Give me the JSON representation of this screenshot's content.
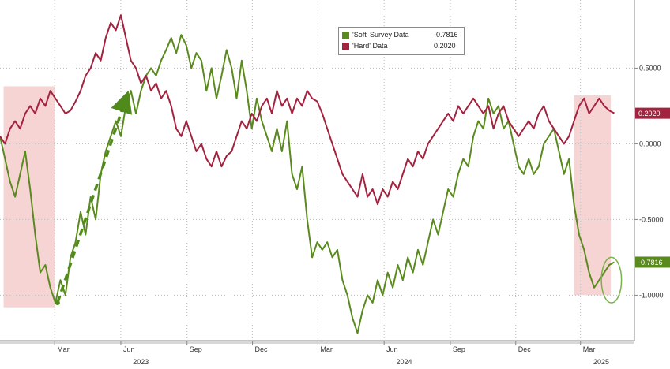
{
  "chart_data": {
    "type": "line",
    "title": "",
    "xlabel": "",
    "ylabel": "",
    "ylim": [
      -1.3,
      0.95
    ],
    "x_range": [
      "2022-12-15",
      "2025-05-15"
    ],
    "yticks": [
      {
        "value": 0.5,
        "label": "0.5000"
      },
      {
        "value": 0.0,
        "label": "0.0000"
      },
      {
        "value": -0.5,
        "label": "-0.5000"
      },
      {
        "value": -1.0,
        "label": "-1.0000"
      }
    ],
    "month_ticks": [
      {
        "date": "2023-03-01",
        "label": "Mar"
      },
      {
        "date": "2023-06-01",
        "label": "Jun"
      },
      {
        "date": "2023-09-01",
        "label": "Sep"
      },
      {
        "date": "2023-12-01",
        "label": "Dec"
      },
      {
        "date": "2024-03-01",
        "label": "Mar"
      },
      {
        "date": "2024-06-01",
        "label": "Jun"
      },
      {
        "date": "2024-09-01",
        "label": "Sep"
      },
      {
        "date": "2024-12-01",
        "label": "Dec"
      },
      {
        "date": "2025-03-01",
        "label": "Mar"
      }
    ],
    "year_labels": [
      {
        "date": "2023-07-01",
        "label": "2023"
      },
      {
        "date": "2024-07-01",
        "label": "2024"
      },
      {
        "date": "2025-04-01",
        "label": "2025"
      }
    ],
    "legend_position": "top-center",
    "grid": true,
    "series": [
      {
        "name": "'Soft' Survey Data",
        "last_value": "-0.7816",
        "color": "#5a8a1e",
        "points": [
          [
            "2022-12-15",
            0.05
          ],
          [
            "2022-12-22",
            -0.1
          ],
          [
            "2022-12-29",
            -0.25
          ],
          [
            "2023-01-05",
            -0.35
          ],
          [
            "2023-01-12",
            -0.2
          ],
          [
            "2023-01-19",
            -0.05
          ],
          [
            "2023-01-26",
            -0.3
          ],
          [
            "2023-02-02",
            -0.6
          ],
          [
            "2023-02-09",
            -0.85
          ],
          [
            "2023-02-16",
            -0.8
          ],
          [
            "2023-02-23",
            -0.95
          ],
          [
            "2023-03-02",
            -1.05
          ],
          [
            "2023-03-09",
            -0.9
          ],
          [
            "2023-03-16",
            -1.0
          ],
          [
            "2023-03-23",
            -0.75
          ],
          [
            "2023-03-30",
            -0.65
          ],
          [
            "2023-04-06",
            -0.45
          ],
          [
            "2023-04-13",
            -0.6
          ],
          [
            "2023-04-20",
            -0.35
          ],
          [
            "2023-04-27",
            -0.5
          ],
          [
            "2023-05-04",
            -0.2
          ],
          [
            "2023-05-11",
            -0.05
          ],
          [
            "2023-05-18",
            0.05
          ],
          [
            "2023-05-25",
            0.15
          ],
          [
            "2023-06-01",
            0.05
          ],
          [
            "2023-06-08",
            0.25
          ],
          [
            "2023-06-15",
            0.35
          ],
          [
            "2023-06-22",
            0.2
          ],
          [
            "2023-06-29",
            0.35
          ],
          [
            "2023-07-06",
            0.45
          ],
          [
            "2023-07-13",
            0.5
          ],
          [
            "2023-07-20",
            0.45
          ],
          [
            "2023-07-27",
            0.55
          ],
          [
            "2023-08-03",
            0.62
          ],
          [
            "2023-08-10",
            0.7
          ],
          [
            "2023-08-17",
            0.6
          ],
          [
            "2023-08-24",
            0.72
          ],
          [
            "2023-08-31",
            0.65
          ],
          [
            "2023-09-07",
            0.5
          ],
          [
            "2023-09-14",
            0.6
          ],
          [
            "2023-09-21",
            0.55
          ],
          [
            "2023-09-28",
            0.35
          ],
          [
            "2023-10-05",
            0.5
          ],
          [
            "2023-10-12",
            0.3
          ],
          [
            "2023-10-19",
            0.45
          ],
          [
            "2023-10-26",
            0.62
          ],
          [
            "2023-11-02",
            0.5
          ],
          [
            "2023-11-09",
            0.3
          ],
          [
            "2023-11-16",
            0.55
          ],
          [
            "2023-11-23",
            0.35
          ],
          [
            "2023-11-30",
            0.1
          ],
          [
            "2023-12-07",
            0.3
          ],
          [
            "2023-12-14",
            0.15
          ],
          [
            "2023-12-21",
            0.05
          ],
          [
            "2023-12-28",
            -0.05
          ],
          [
            "2024-01-04",
            0.1
          ],
          [
            "2024-01-11",
            -0.05
          ],
          [
            "2024-01-18",
            0.15
          ],
          [
            "2024-01-25",
            -0.2
          ],
          [
            "2024-02-01",
            -0.3
          ],
          [
            "2024-02-08",
            -0.15
          ],
          [
            "2024-02-15",
            -0.5
          ],
          [
            "2024-02-22",
            -0.75
          ],
          [
            "2024-02-29",
            -0.65
          ],
          [
            "2024-03-07",
            -0.7
          ],
          [
            "2024-03-14",
            -0.65
          ],
          [
            "2024-03-21",
            -0.75
          ],
          [
            "2024-03-28",
            -0.7
          ],
          [
            "2024-04-04",
            -0.9
          ],
          [
            "2024-04-11",
            -1.0
          ],
          [
            "2024-04-18",
            -1.15
          ],
          [
            "2024-04-25",
            -1.25
          ],
          [
            "2024-05-02",
            -1.1
          ],
          [
            "2024-05-09",
            -1.0
          ],
          [
            "2024-05-16",
            -1.05
          ],
          [
            "2024-05-23",
            -0.9
          ],
          [
            "2024-05-30",
            -1.0
          ],
          [
            "2024-06-06",
            -0.85
          ],
          [
            "2024-06-13",
            -0.95
          ],
          [
            "2024-06-20",
            -0.8
          ],
          [
            "2024-06-27",
            -0.9
          ],
          [
            "2024-07-04",
            -0.75
          ],
          [
            "2024-07-11",
            -0.85
          ],
          [
            "2024-07-18",
            -0.7
          ],
          [
            "2024-07-25",
            -0.8
          ],
          [
            "2024-08-01",
            -0.65
          ],
          [
            "2024-08-08",
            -0.5
          ],
          [
            "2024-08-15",
            -0.6
          ],
          [
            "2024-08-22",
            -0.45
          ],
          [
            "2024-08-29",
            -0.3
          ],
          [
            "2024-09-05",
            -0.35
          ],
          [
            "2024-09-12",
            -0.2
          ],
          [
            "2024-09-19",
            -0.1
          ],
          [
            "2024-09-26",
            -0.15
          ],
          [
            "2024-10-03",
            0.05
          ],
          [
            "2024-10-10",
            0.15
          ],
          [
            "2024-10-17",
            0.1
          ],
          [
            "2024-10-24",
            0.3
          ],
          [
            "2024-10-31",
            0.2
          ],
          [
            "2024-11-07",
            0.25
          ],
          [
            "2024-11-14",
            0.1
          ],
          [
            "2024-11-21",
            0.15
          ],
          [
            "2024-11-28",
            0.0
          ],
          [
            "2024-12-05",
            -0.15
          ],
          [
            "2024-12-12",
            -0.2
          ],
          [
            "2024-12-19",
            -0.1
          ],
          [
            "2024-12-26",
            -0.2
          ],
          [
            "2025-01-02",
            -0.15
          ],
          [
            "2025-01-09",
            0.0
          ],
          [
            "2025-01-16",
            0.05
          ],
          [
            "2025-01-23",
            0.1
          ],
          [
            "2025-01-30",
            -0.05
          ],
          [
            "2025-02-06",
            -0.2
          ],
          [
            "2025-02-13",
            -0.1
          ],
          [
            "2025-02-20",
            -0.4
          ],
          [
            "2025-02-27",
            -0.6
          ],
          [
            "2025-03-06",
            -0.7
          ],
          [
            "2025-03-13",
            -0.85
          ],
          [
            "2025-03-20",
            -0.95
          ],
          [
            "2025-03-27",
            -0.9
          ],
          [
            "2025-04-03",
            -0.85
          ],
          [
            "2025-04-10",
            -0.8
          ],
          [
            "2025-04-17",
            -0.7816
          ]
        ]
      },
      {
        "name": "'Hard' Data",
        "last_value": "0.2020",
        "color": "#a3223f",
        "points": [
          [
            "2022-12-15",
            0.05
          ],
          [
            "2022-12-22",
            0.0
          ],
          [
            "2022-12-29",
            0.1
          ],
          [
            "2023-01-05",
            0.15
          ],
          [
            "2023-01-12",
            0.1
          ],
          [
            "2023-01-19",
            0.2
          ],
          [
            "2023-01-26",
            0.25
          ],
          [
            "2023-02-02",
            0.2
          ],
          [
            "2023-02-09",
            0.3
          ],
          [
            "2023-02-16",
            0.25
          ],
          [
            "2023-02-23",
            0.35
          ],
          [
            "2023-03-02",
            0.3
          ],
          [
            "2023-03-09",
            0.25
          ],
          [
            "2023-03-16",
            0.2
          ],
          [
            "2023-03-23",
            0.22
          ],
          [
            "2023-03-30",
            0.28
          ],
          [
            "2023-04-06",
            0.35
          ],
          [
            "2023-04-13",
            0.45
          ],
          [
            "2023-04-20",
            0.5
          ],
          [
            "2023-04-27",
            0.6
          ],
          [
            "2023-05-04",
            0.55
          ],
          [
            "2023-05-11",
            0.7
          ],
          [
            "2023-05-18",
            0.8
          ],
          [
            "2023-05-25",
            0.75
          ],
          [
            "2023-06-01",
            0.85
          ],
          [
            "2023-06-08",
            0.7
          ],
          [
            "2023-06-15",
            0.55
          ],
          [
            "2023-06-22",
            0.5
          ],
          [
            "2023-06-29",
            0.4
          ],
          [
            "2023-07-06",
            0.45
          ],
          [
            "2023-07-13",
            0.35
          ],
          [
            "2023-07-20",
            0.4
          ],
          [
            "2023-07-27",
            0.3
          ],
          [
            "2023-08-03",
            0.35
          ],
          [
            "2023-08-10",
            0.25
          ],
          [
            "2023-08-17",
            0.1
          ],
          [
            "2023-08-24",
            0.05
          ],
          [
            "2023-08-31",
            0.15
          ],
          [
            "2023-09-07",
            0.05
          ],
          [
            "2023-09-14",
            -0.05
          ],
          [
            "2023-09-21",
            0.0
          ],
          [
            "2023-09-28",
            -0.1
          ],
          [
            "2023-10-05",
            -0.15
          ],
          [
            "2023-10-12",
            -0.05
          ],
          [
            "2023-10-19",
            -0.15
          ],
          [
            "2023-10-26",
            -0.08
          ],
          [
            "2023-11-02",
            -0.05
          ],
          [
            "2023-11-09",
            0.05
          ],
          [
            "2023-11-16",
            0.15
          ],
          [
            "2023-11-23",
            0.1
          ],
          [
            "2023-11-30",
            0.2
          ],
          [
            "2023-12-07",
            0.15
          ],
          [
            "2023-12-14",
            0.25
          ],
          [
            "2023-12-21",
            0.3
          ],
          [
            "2023-12-28",
            0.2
          ],
          [
            "2024-01-04",
            0.35
          ],
          [
            "2024-01-11",
            0.25
          ],
          [
            "2024-01-18",
            0.3
          ],
          [
            "2024-01-25",
            0.2
          ],
          [
            "2024-02-01",
            0.3
          ],
          [
            "2024-02-08",
            0.25
          ],
          [
            "2024-02-15",
            0.35
          ],
          [
            "2024-02-22",
            0.3
          ],
          [
            "2024-02-29",
            0.28
          ],
          [
            "2024-03-07",
            0.2
          ],
          [
            "2024-03-14",
            0.1
          ],
          [
            "2024-03-21",
            0.0
          ],
          [
            "2024-03-28",
            -0.1
          ],
          [
            "2024-04-04",
            -0.2
          ],
          [
            "2024-04-11",
            -0.25
          ],
          [
            "2024-04-18",
            -0.3
          ],
          [
            "2024-04-25",
            -0.35
          ],
          [
            "2024-05-02",
            -0.2
          ],
          [
            "2024-05-09",
            -0.35
          ],
          [
            "2024-05-16",
            -0.3
          ],
          [
            "2024-05-23",
            -0.4
          ],
          [
            "2024-05-30",
            -0.3
          ],
          [
            "2024-06-06",
            -0.35
          ],
          [
            "2024-06-13",
            -0.25
          ],
          [
            "2024-06-20",
            -0.3
          ],
          [
            "2024-06-27",
            -0.2
          ],
          [
            "2024-07-04",
            -0.1
          ],
          [
            "2024-07-11",
            -0.15
          ],
          [
            "2024-07-18",
            -0.05
          ],
          [
            "2024-07-25",
            -0.1
          ],
          [
            "2024-08-01",
            0.0
          ],
          [
            "2024-08-08",
            0.05
          ],
          [
            "2024-08-15",
            0.1
          ],
          [
            "2024-08-22",
            0.15
          ],
          [
            "2024-08-29",
            0.2
          ],
          [
            "2024-09-05",
            0.15
          ],
          [
            "2024-09-12",
            0.25
          ],
          [
            "2024-09-19",
            0.2
          ],
          [
            "2024-09-26",
            0.25
          ],
          [
            "2024-10-03",
            0.3
          ],
          [
            "2024-10-10",
            0.25
          ],
          [
            "2024-10-17",
            0.2
          ],
          [
            "2024-10-24",
            0.25
          ],
          [
            "2024-10-31",
            0.1
          ],
          [
            "2024-11-07",
            0.2
          ],
          [
            "2024-11-14",
            0.25
          ],
          [
            "2024-11-21",
            0.15
          ],
          [
            "2024-11-28",
            0.1
          ],
          [
            "2024-12-05",
            0.05
          ],
          [
            "2024-12-12",
            0.1
          ],
          [
            "2024-12-19",
            0.15
          ],
          [
            "2024-12-26",
            0.1
          ],
          [
            "2025-01-02",
            0.2
          ],
          [
            "2025-01-09",
            0.25
          ],
          [
            "2025-01-16",
            0.15
          ],
          [
            "2025-01-23",
            0.1
          ],
          [
            "2025-01-30",
            0.05
          ],
          [
            "2025-02-06",
            0.0
          ],
          [
            "2025-02-13",
            0.05
          ],
          [
            "2025-02-20",
            0.15
          ],
          [
            "2025-02-27",
            0.25
          ],
          [
            "2025-03-06",
            0.3
          ],
          [
            "2025-03-13",
            0.2
          ],
          [
            "2025-03-20",
            0.25
          ],
          [
            "2025-03-27",
            0.3
          ],
          [
            "2025-04-03",
            0.25
          ],
          [
            "2025-04-10",
            0.22
          ],
          [
            "2025-04-17",
            0.202
          ]
        ]
      }
    ],
    "highlight_regions": [
      {
        "x_start": "2022-12-20",
        "x_end": "2023-03-01",
        "y_top": 0.38,
        "y_bottom": -1.08
      },
      {
        "x_start": "2025-02-20",
        "x_end": "2025-04-12",
        "y_top": 0.32,
        "y_bottom": -1.0
      }
    ],
    "trend_arrow": {
      "from": [
        "2023-03-05",
        -1.05
      ],
      "to": [
        "2023-06-08",
        0.3
      ]
    },
    "circle_annotation": {
      "center": [
        "2025-04-13",
        -0.9
      ],
      "radius_x_days": 14,
      "radius_y": 0.15
    }
  },
  "colors": {
    "soft": "#5a8a1e",
    "hard": "#a3223f",
    "highlight": "#f4c6c6",
    "grid": "#bdbdbd",
    "arrow": "#4f8a1a"
  }
}
